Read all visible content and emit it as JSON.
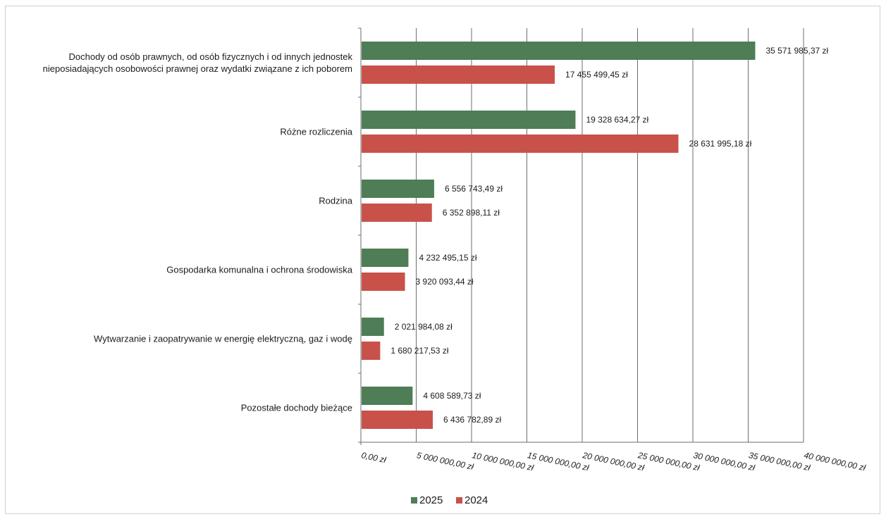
{
  "chart_data": {
    "type": "bar",
    "orientation": "horizontal",
    "categories": [
      [
        "Dochody od osób prawnych, od osób fizycznych i od innych jednostek",
        "nieposiadających osobowości prawnej oraz wydatki związane z ich poborem"
      ],
      [
        "Różne rozliczenia"
      ],
      [
        "Rodzina"
      ],
      [
        "Gospodarka komunalna i ochrona środowiska"
      ],
      [
        "Wytwarzanie i zaopatrywanie w energię elektryczną, gaz i wodę"
      ],
      [
        "Pozostałe dochody bieżące"
      ]
    ],
    "series": [
      {
        "name": "2025",
        "color": "#4e7d56",
        "values": [
          35571985.37,
          19328634.27,
          6556743.49,
          4232495.15,
          2021984.08,
          4608589.73
        ],
        "labels": [
          "35 571 985,37 zł",
          "19 328 634,27 zł",
          "6 556 743,49 zł",
          "4 232 495,15 zł",
          "2 021 984,08 zł",
          "4 608 589,73 zł"
        ]
      },
      {
        "name": "2024",
        "color": "#c8524a",
        "values": [
          17455499.45,
          28631995.18,
          6352898.11,
          3920093.44,
          1680217.53,
          6436782.89
        ],
        "labels": [
          "17 455 499,45 zł",
          "28 631 995,18 zł",
          "6 352 898,11 zł",
          "3 920 093,44 zł",
          "1 680 217,53 zł",
          "6 436 782,89 zł"
        ]
      }
    ],
    "xlim": [
      0,
      40000000
    ],
    "xticks": [
      0,
      5000000,
      10000000,
      15000000,
      20000000,
      25000000,
      30000000,
      35000000,
      40000000
    ],
    "xtick_labels": [
      "0,00 zł",
      "5 000 000,00 zł",
      "10 000 000,00 zł",
      "15 000 000,00 zł",
      "20 000 000,00 zł",
      "25 000 000,00 zł",
      "30 000 000,00 zł",
      "35 000 000,00 zł",
      "40 000 000,00 zł"
    ],
    "grid": true,
    "legend": "bottom"
  }
}
